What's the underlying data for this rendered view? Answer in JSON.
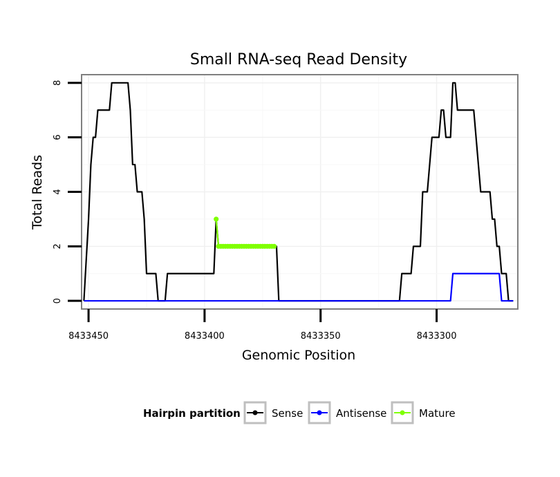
{
  "chart_data": {
    "type": "line",
    "title": "Small RNA-seq Read Density",
    "xlabel": "Genomic Position",
    "ylabel": "Total Reads",
    "xlim": [
      8433453,
      8433265
    ],
    "ylim": [
      -0.3,
      8.3
    ],
    "x_reversed": true,
    "x_ticks": [
      8433450,
      8433400,
      8433350,
      8433300
    ],
    "x_tick_labels": [
      "8433450",
      "8433400",
      "8433350",
      "8433300"
    ],
    "y_ticks": [
      0,
      2,
      4,
      6,
      8
    ],
    "y_tick_labels": [
      "0",
      "2",
      "4",
      "6",
      "8"
    ],
    "grid": true,
    "legend": {
      "title": "Hairpin partition",
      "position": "bottom",
      "entries": [
        "Sense",
        "Antisense",
        "Mature"
      ]
    },
    "series": [
      {
        "name": "Sense",
        "color": "#000000",
        "markers": false,
        "points": [
          [
            8433452,
            0
          ],
          [
            8433450,
            3
          ],
          [
            8433449,
            5
          ],
          [
            8433448,
            6
          ],
          [
            8433447,
            6
          ],
          [
            8433446,
            7
          ],
          [
            8433441,
            7
          ],
          [
            8433440,
            8
          ],
          [
            8433433,
            8
          ],
          [
            8433432,
            7
          ],
          [
            8433431,
            5
          ],
          [
            8433430,
            5
          ],
          [
            8433429,
            4
          ],
          [
            8433427,
            4
          ],
          [
            8433426,
            3
          ],
          [
            8433425,
            1
          ],
          [
            8433421,
            1
          ],
          [
            8433420,
            0
          ],
          [
            8433417,
            0
          ],
          [
            8433416,
            1
          ],
          [
            8433396,
            1
          ],
          [
            8433395,
            3
          ],
          [
            8433394,
            2
          ],
          [
            8433369,
            2
          ],
          [
            8433368,
            0
          ],
          [
            8433316,
            0
          ],
          [
            8433315,
            1
          ],
          [
            8433311,
            1
          ],
          [
            8433310,
            2
          ],
          [
            8433307,
            2
          ],
          [
            8433306,
            4
          ],
          [
            8433304,
            4
          ],
          [
            8433303,
            5
          ],
          [
            8433302,
            6
          ],
          [
            8433299,
            6
          ],
          [
            8433298,
            7
          ],
          [
            8433297,
            7
          ],
          [
            8433296,
            6
          ],
          [
            8433294,
            6
          ],
          [
            8433293,
            8
          ],
          [
            8433292,
            8
          ],
          [
            8433291,
            7
          ],
          [
            8433284,
            7
          ],
          [
            8433282,
            5
          ],
          [
            8433281,
            4
          ],
          [
            8433277,
            4
          ],
          [
            8433276,
            3
          ],
          [
            8433275,
            3
          ],
          [
            8433274,
            2
          ],
          [
            8433273,
            2
          ],
          [
            8433272,
            1
          ],
          [
            8433270,
            1
          ],
          [
            8433269,
            0
          ],
          [
            8433267,
            0
          ]
        ]
      },
      {
        "name": "Antisense",
        "color": "#0000ff",
        "markers": false,
        "points": [
          [
            8433452,
            0
          ],
          [
            8433294,
            0
          ],
          [
            8433293,
            1
          ],
          [
            8433273,
            1
          ],
          [
            8433272,
            0
          ],
          [
            8433267,
            0
          ]
        ]
      },
      {
        "name": "Mature",
        "color": "#7fff00",
        "markers": true,
        "points": [
          [
            8433395,
            3
          ],
          [
            8433394,
            2
          ],
          [
            8433393,
            2
          ],
          [
            8433392,
            2
          ],
          [
            8433391,
            2
          ],
          [
            8433390,
            2
          ],
          [
            8433389,
            2
          ],
          [
            8433388,
            2
          ],
          [
            8433387,
            2
          ],
          [
            8433386,
            2
          ],
          [
            8433385,
            2
          ],
          [
            8433384,
            2
          ],
          [
            8433383,
            2
          ],
          [
            8433382,
            2
          ],
          [
            8433381,
            2
          ],
          [
            8433380,
            2
          ],
          [
            8433379,
            2
          ],
          [
            8433378,
            2
          ],
          [
            8433377,
            2
          ],
          [
            8433376,
            2
          ],
          [
            8433375,
            2
          ],
          [
            8433374,
            2
          ],
          [
            8433373,
            2
          ],
          [
            8433372,
            2
          ],
          [
            8433371,
            2
          ],
          [
            8433370,
            2
          ]
        ]
      }
    ]
  }
}
